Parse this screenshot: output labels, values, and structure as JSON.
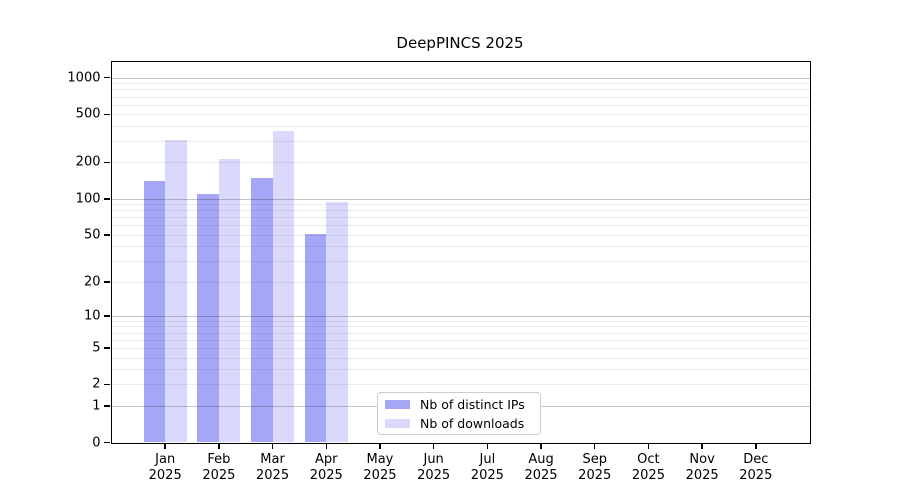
{
  "chart_data": {
    "type": "bar",
    "title": "DeepPINCS 2025",
    "yscale": "log1p",
    "ylim": [
      0,
      1360
    ],
    "yticks": [
      0,
      1,
      2,
      5,
      10,
      20,
      50,
      100,
      200,
      500,
      1000
    ],
    "grid": {
      "major": [
        1,
        10,
        100,
        1000
      ],
      "minor": [
        2,
        3,
        4,
        5,
        6,
        7,
        8,
        9,
        20,
        30,
        40,
        50,
        60,
        70,
        80,
        90,
        200,
        300,
        400,
        500,
        600,
        700,
        800,
        900
      ]
    },
    "categories": [
      {
        "label": "Jan",
        "year": "2025"
      },
      {
        "label": "Feb",
        "year": "2025"
      },
      {
        "label": "Mar",
        "year": "2025"
      },
      {
        "label": "Apr",
        "year": "2025"
      },
      {
        "label": "May",
        "year": "2025"
      },
      {
        "label": "Jun",
        "year": "2025"
      },
      {
        "label": "Jul",
        "year": "2025"
      },
      {
        "label": "Aug",
        "year": "2025"
      },
      {
        "label": "Sep",
        "year": "2025"
      },
      {
        "label": "Oct",
        "year": "2025"
      },
      {
        "label": "Nov",
        "year": "2025"
      },
      {
        "label": "Dec",
        "year": "2025"
      }
    ],
    "series": [
      {
        "name": "Nb of distinct IPs",
        "color": "#a6a6f7",
        "values": [
          140,
          110,
          150,
          51,
          null,
          null,
          null,
          null,
          null,
          null,
          null,
          null
        ]
      },
      {
        "name": "Nb of downloads",
        "color": "#d9d9fb",
        "values": [
          305,
          215,
          365,
          94,
          null,
          null,
          null,
          null,
          null,
          null,
          null,
          null
        ]
      }
    ],
    "legend_position": "lower center"
  }
}
